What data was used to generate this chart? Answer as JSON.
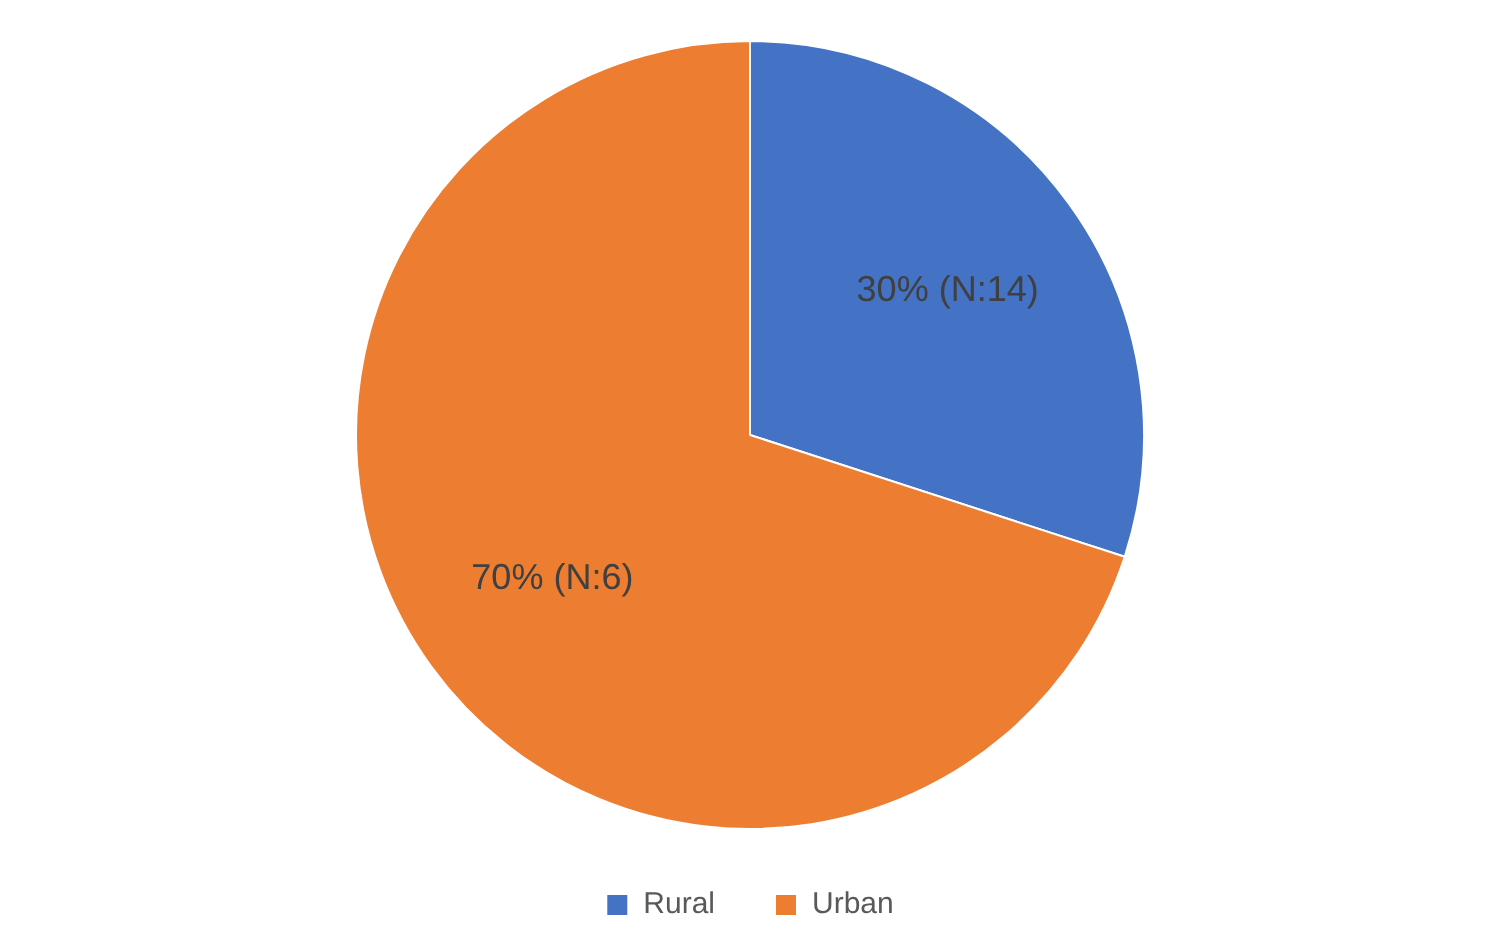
{
  "chart_data": {
    "type": "pie",
    "categories": [
      "Rural",
      "Urban"
    ],
    "values": [
      30,
      70
    ],
    "colors": [
      "#4472c4",
      "#ed7d31"
    ],
    "value_labels": [
      "30% (N:14)",
      "70% (N:6)"
    ],
    "legend": "bottom"
  }
}
